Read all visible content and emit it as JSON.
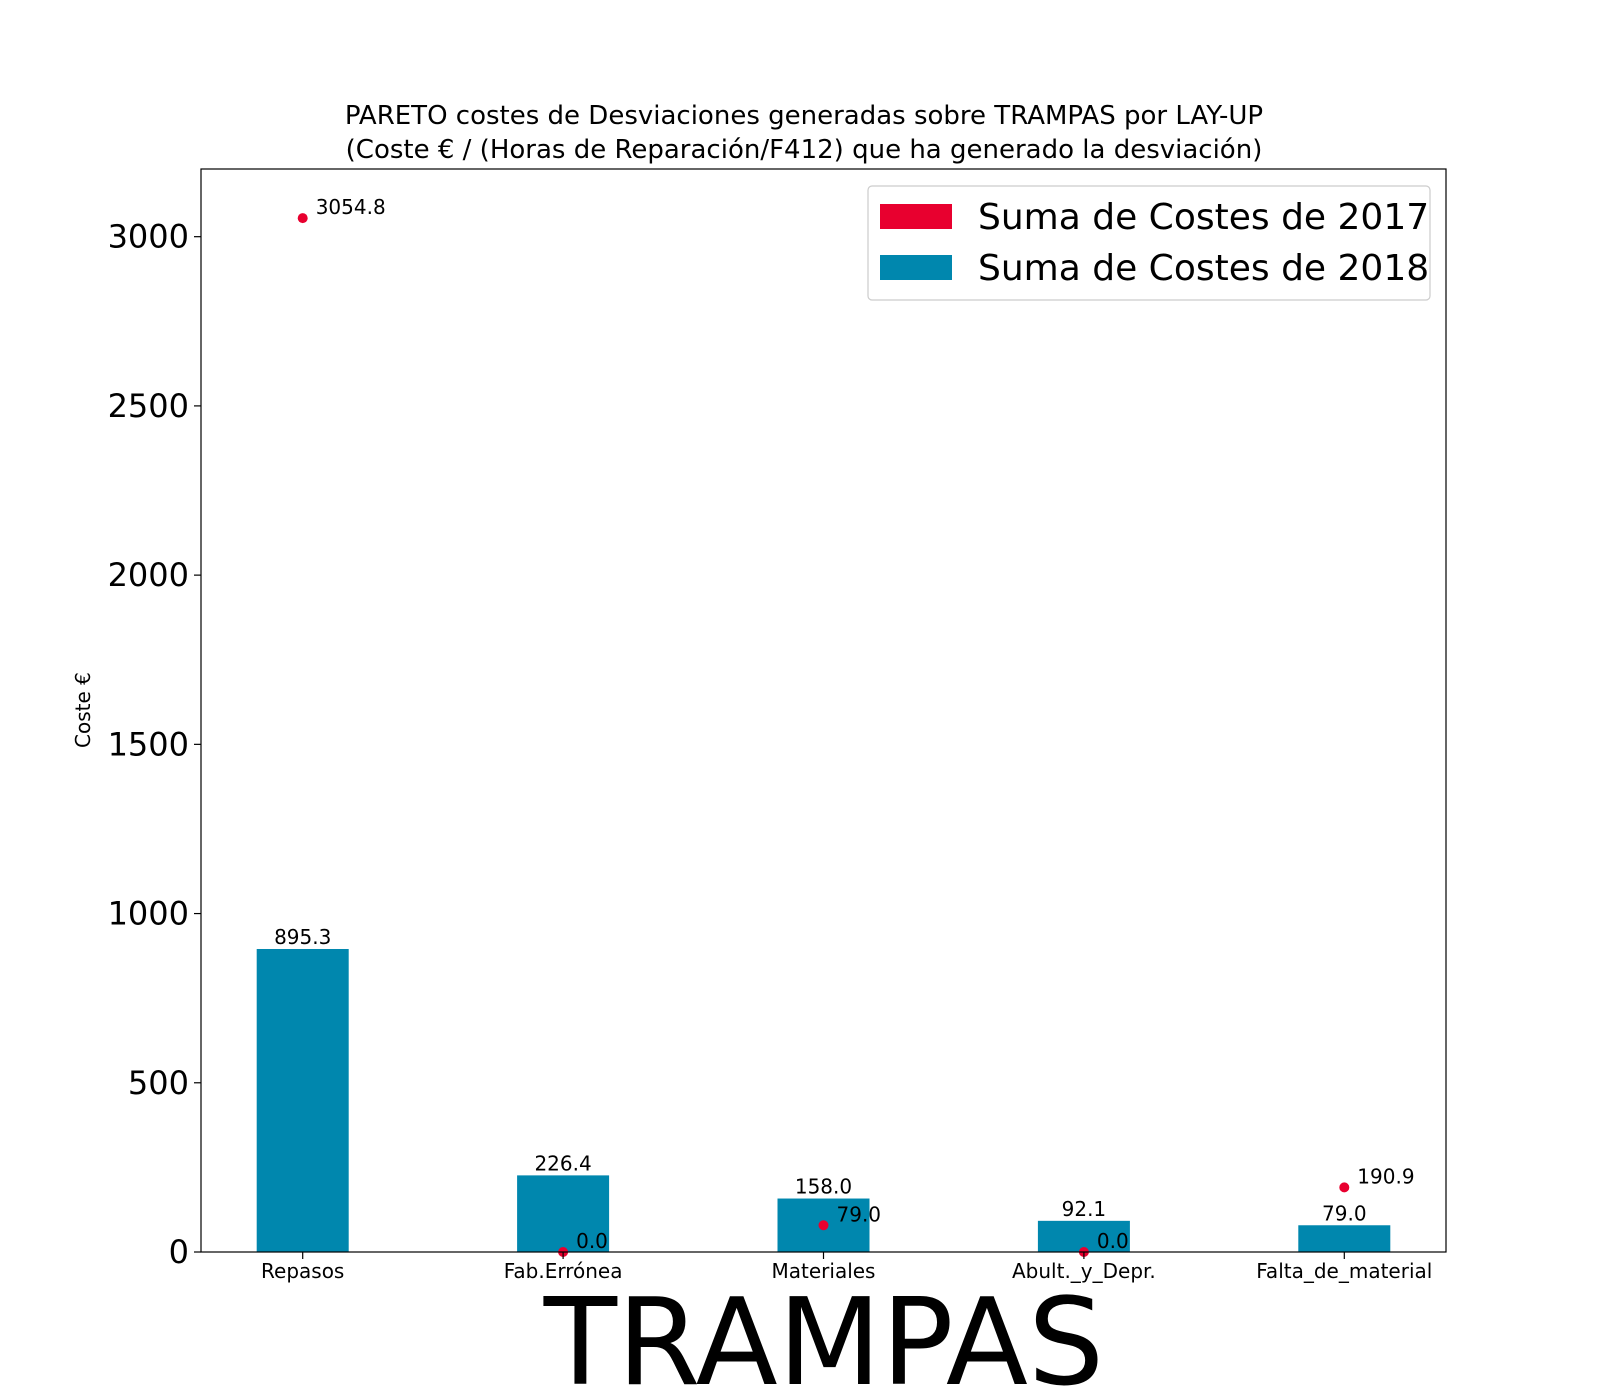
{
  "chart_data": {
    "type": "bar",
    "title": [
      "PARETO costes de Desviaciones  generadas  sobre TRAMPAS por LAY-UP",
      "(Coste € / (Horas de Reparación/F412) que ha generado la desviación)"
    ],
    "xlabel": "TRAMPAS",
    "ylabel": "Coste €",
    "categories": [
      "Repasos",
      "Fab.Errónea",
      "Materiales",
      "Abult._y_Depr.",
      "Falta_de_material"
    ],
    "ylim": [
      0,
      3200
    ],
    "yticks": [
      0,
      500,
      1000,
      1500,
      2000,
      2500,
      3000
    ],
    "grid": false,
    "legend_position": "top-right",
    "series": [
      {
        "name": "Suma de Costes de 2017",
        "kind": "scatter",
        "color": "#e8002f",
        "values": [
          3054.8,
          0.0,
          79.0,
          0.0,
          190.9
        ],
        "labels": [
          "3054.8",
          "0.0",
          "79.0",
          "0.0",
          "190.9"
        ]
      },
      {
        "name": "Suma de Costes de 2018",
        "kind": "bar",
        "color": "#0087ae",
        "values": [
          895.3,
          226.4,
          158.0,
          92.1,
          79.0
        ],
        "labels": [
          "895.3",
          "226.4",
          "158.0",
          "92.1",
          "79.0"
        ]
      }
    ]
  }
}
